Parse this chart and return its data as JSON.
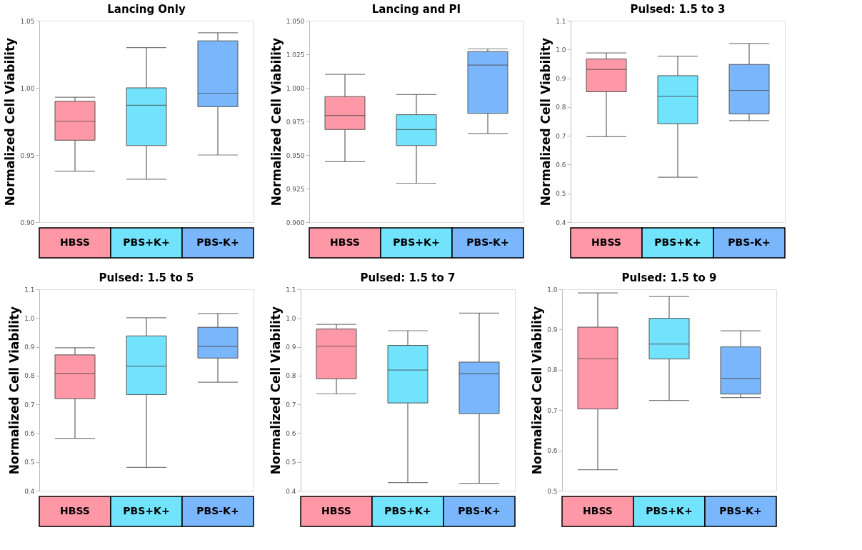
{
  "chart_data": [
    {
      "type": "box",
      "title": "Lancing Only",
      "ylabel": "Normalized Cell Viability",
      "categories": [
        "HBSS",
        "PBS+K+",
        "PBS-K+"
      ],
      "colors": [
        "#fe97a6",
        "#72e3fc",
        "#7ab6fc"
      ],
      "boxes": [
        {
          "low": 0.938,
          "q1": 0.961,
          "median": 0.975,
          "q3": 0.99,
          "high": 0.993
        },
        {
          "low": 0.932,
          "q1": 0.957,
          "median": 0.987,
          "q3": 1.0,
          "high": 1.03
        },
        {
          "low": 0.95,
          "q1": 0.986,
          "median": 0.996,
          "q3": 1.035,
          "high": 1.041
        }
      ],
      "ylim": [
        0.9,
        1.05
      ],
      "yticks": [
        {
          "value": 0.9,
          "label": "0.90"
        },
        {
          "value": 0.95,
          "label": "0.95"
        },
        {
          "value": 1.0,
          "label": "1.00"
        },
        {
          "value": 1.05,
          "label": "1.05"
        }
      ]
    },
    {
      "type": "box",
      "title": "Lancing and PI",
      "ylabel": "Normalized Cell Viability",
      "categories": [
        "HBSS",
        "PBS+K+",
        "PBS-K+"
      ],
      "colors": [
        "#fe97a6",
        "#72e3fc",
        "#7ab6fc"
      ],
      "boxes": [
        {
          "low": 0.945,
          "q1": 0.969,
          "median": 0.9795,
          "q3": 0.9935,
          "high": 1.01
        },
        {
          "low": 0.929,
          "q1": 0.957,
          "median": 0.969,
          "q3": 0.98,
          "high": 0.995
        },
        {
          "low": 0.966,
          "q1": 0.981,
          "median": 1.017,
          "q3": 1.027,
          "high": 1.029
        }
      ],
      "ylim": [
        0.9,
        1.05
      ],
      "yticks": [
        {
          "value": 0.9,
          "label": "0.900"
        },
        {
          "value": 0.925,
          "label": "0.925"
        },
        {
          "value": 0.95,
          "label": "0.950"
        },
        {
          "value": 0.975,
          "label": "0.975"
        },
        {
          "value": 1.0,
          "label": "1.000"
        },
        {
          "value": 1.025,
          "label": "1.025"
        },
        {
          "value": 1.05,
          "label": "1.050"
        }
      ]
    },
    {
      "type": "box",
      "title": "Pulsed: 1.5 to 3",
      "ylabel": "Normalized Cell Viability",
      "categories": [
        "HBSS",
        "PBS+K+",
        "PBS-K+"
      ],
      "colors": [
        "#fe97a6",
        "#72e3fc",
        "#7ab6fc"
      ],
      "boxes": [
        {
          "low": 0.697,
          "q1": 0.853,
          "median": 0.931,
          "q3": 0.967,
          "high": 0.988
        },
        {
          "low": 0.556,
          "q1": 0.742,
          "median": 0.837,
          "q3": 0.909,
          "high": 0.977
        },
        {
          "low": 0.753,
          "q1": 0.776,
          "median": 0.858,
          "q3": 0.948,
          "high": 1.021
        }
      ],
      "ylim": [
        0.4,
        1.1
      ],
      "yticks": [
        0.4,
        0.5,
        0.6,
        0.7,
        0.8,
        0.9,
        {
          "value": 1.0,
          "label": "1.0"
        },
        1.1
      ]
    },
    {
      "type": "box",
      "title": "Pulsed: 1.5 to 5",
      "ylabel": "Normalized Cell Viability",
      "categories": [
        "HBSS",
        "PBS+K+",
        "PBS-K+"
      ],
      "colors": [
        "#fe97a6",
        "#72e3fc",
        "#7ab6fc"
      ],
      "boxes": [
        {
          "low": 0.582,
          "q1": 0.72,
          "median": 0.808,
          "q3": 0.872,
          "high": 0.897
        },
        {
          "low": 0.481,
          "q1": 0.734,
          "median": 0.833,
          "q3": 0.938,
          "high": 1.001
        },
        {
          "low": 0.777,
          "q1": 0.861,
          "median": 0.901,
          "q3": 0.968,
          "high": 1.016
        }
      ],
      "ylim": [
        0.4,
        1.1
      ],
      "yticks": [
        0.4,
        0.5,
        0.6,
        0.7,
        0.8,
        0.9,
        {
          "value": 1.0,
          "label": "1.0"
        },
        1.1
      ]
    },
    {
      "type": "box",
      "title": "Pulsed: 1.5 to 7",
      "ylabel": "Normalized Cell Viability",
      "categories": [
        "HBSS",
        "PBS+K+",
        "PBS-K+"
      ],
      "colors": [
        "#fe97a6",
        "#72e3fc",
        "#7ab6fc"
      ],
      "boxes": [
        {
          "low": 0.737,
          "q1": 0.789,
          "median": 0.902,
          "q3": 0.962,
          "high": 0.978
        },
        {
          "low": 0.428,
          "q1": 0.705,
          "median": 0.819,
          "q3": 0.905,
          "high": 0.956
        },
        {
          "low": 0.426,
          "q1": 0.668,
          "median": 0.807,
          "q3": 0.847,
          "high": 1.017
        }
      ],
      "ylim": [
        0.4,
        1.1
      ],
      "yticks": [
        0.4,
        0.5,
        0.6,
        0.7,
        0.8,
        0.9,
        {
          "value": 1.0,
          "label": "1.0"
        },
        1.1
      ]
    },
    {
      "type": "box",
      "title": "Pulsed: 1.5 to 9",
      "ylabel": "Normalized Cell Viability",
      "categories": [
        "HBSS",
        "PBS+K+",
        "PBS-K+"
      ],
      "colors": [
        "#fe97a6",
        "#72e3fc",
        "#7ab6fc"
      ],
      "boxes": [
        {
          "low": 0.552,
          "q1": 0.703,
          "median": 0.828,
          "q3": 0.906,
          "high": 0.991
        },
        {
          "low": 0.724,
          "q1": 0.827,
          "median": 0.864,
          "q3": 0.928,
          "high": 0.982
        },
        {
          "low": 0.731,
          "q1": 0.74,
          "median": 0.779,
          "q3": 0.857,
          "high": 0.897
        }
      ],
      "ylim": [
        0.5,
        1.0
      ],
      "yticks": [
        0.5,
        0.6,
        0.7,
        0.8,
        0.9,
        {
          "value": 1.0,
          "label": "1.0"
        }
      ]
    }
  ]
}
